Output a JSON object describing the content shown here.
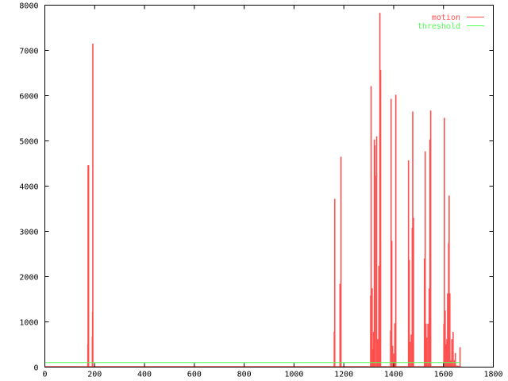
{
  "chart_data": {
    "type": "impulse",
    "title": "",
    "xlabel": "",
    "ylabel": "",
    "xlim": [
      0,
      1800
    ],
    "ylim": [
      0,
      8000
    ],
    "xticks": [
      "0",
      "200",
      "400",
      "600",
      "800",
      "1000",
      "1200",
      "1400",
      "1600",
      "1800"
    ],
    "yticks": [
      "0",
      "1000",
      "2000",
      "3000",
      "4000",
      "5000",
      "6000",
      "7000",
      "8000"
    ],
    "grid": false,
    "legend_position": "top-right",
    "series": [
      {
        "name": "motion",
        "color": "#ff5050",
        "x_extent": [
          0,
          1668
        ],
        "points": [
          [
            172,
            500
          ],
          [
            173,
            4460
          ],
          [
            174,
            4460
          ],
          [
            175,
            4460
          ],
          [
            190,
            680
          ],
          [
            191,
            1220
          ],
          [
            192,
            7150
          ],
          [
            1161,
            780
          ],
          [
            1163,
            3720
          ],
          [
            1184,
            1840
          ],
          [
            1188,
            4650
          ],
          [
            1307,
            1580
          ],
          [
            1309,
            6210
          ],
          [
            1313,
            1740
          ],
          [
            1316,
            400
          ],
          [
            1319,
            780
          ],
          [
            1322,
            5030
          ],
          [
            1324,
            4900
          ],
          [
            1326,
            4230
          ],
          [
            1331,
            5100
          ],
          [
            1335,
            620
          ],
          [
            1338,
            310
          ],
          [
            1340,
            2240
          ],
          [
            1344,
            7830
          ],
          [
            1347,
            6570
          ],
          [
            1387,
            810
          ],
          [
            1389,
            5930
          ],
          [
            1392,
            2790
          ],
          [
            1395,
            470
          ],
          [
            1400,
            300
          ],
          [
            1404,
            970
          ],
          [
            1408,
            6020
          ],
          [
            1456,
            10
          ],
          [
            1459,
            4570
          ],
          [
            1462,
            2370
          ],
          [
            1465,
            560
          ],
          [
            1470,
            720
          ],
          [
            1474,
            3080
          ],
          [
            1476,
            5650
          ],
          [
            1479,
            3300
          ],
          [
            1523,
            2400
          ],
          [
            1526,
            4770
          ],
          [
            1529,
            960
          ],
          [
            1532,
            650
          ],
          [
            1537,
            960
          ],
          [
            1542,
            1740
          ],
          [
            1545,
            5030
          ],
          [
            1548,
            5670
          ],
          [
            1601,
            960
          ],
          [
            1603,
            5510
          ],
          [
            1606,
            1250
          ],
          [
            1609,
            510
          ],
          [
            1613,
            620
          ],
          [
            1616,
            1630
          ],
          [
            1620,
            2740
          ],
          [
            1622,
            3790
          ],
          [
            1625,
            1630
          ],
          [
            1629,
            150
          ],
          [
            1633,
            620
          ],
          [
            1638,
            780
          ],
          [
            1643,
            150
          ],
          [
            1647,
            310
          ],
          [
            1651,
            35
          ],
          [
            1656,
            35
          ],
          [
            1659,
            25
          ],
          [
            1666,
            440
          ]
        ]
      },
      {
        "name": "threshold",
        "color": "#50ff50",
        "value": 100,
        "x_extent": [
          0,
          1668
        ]
      }
    ]
  }
}
